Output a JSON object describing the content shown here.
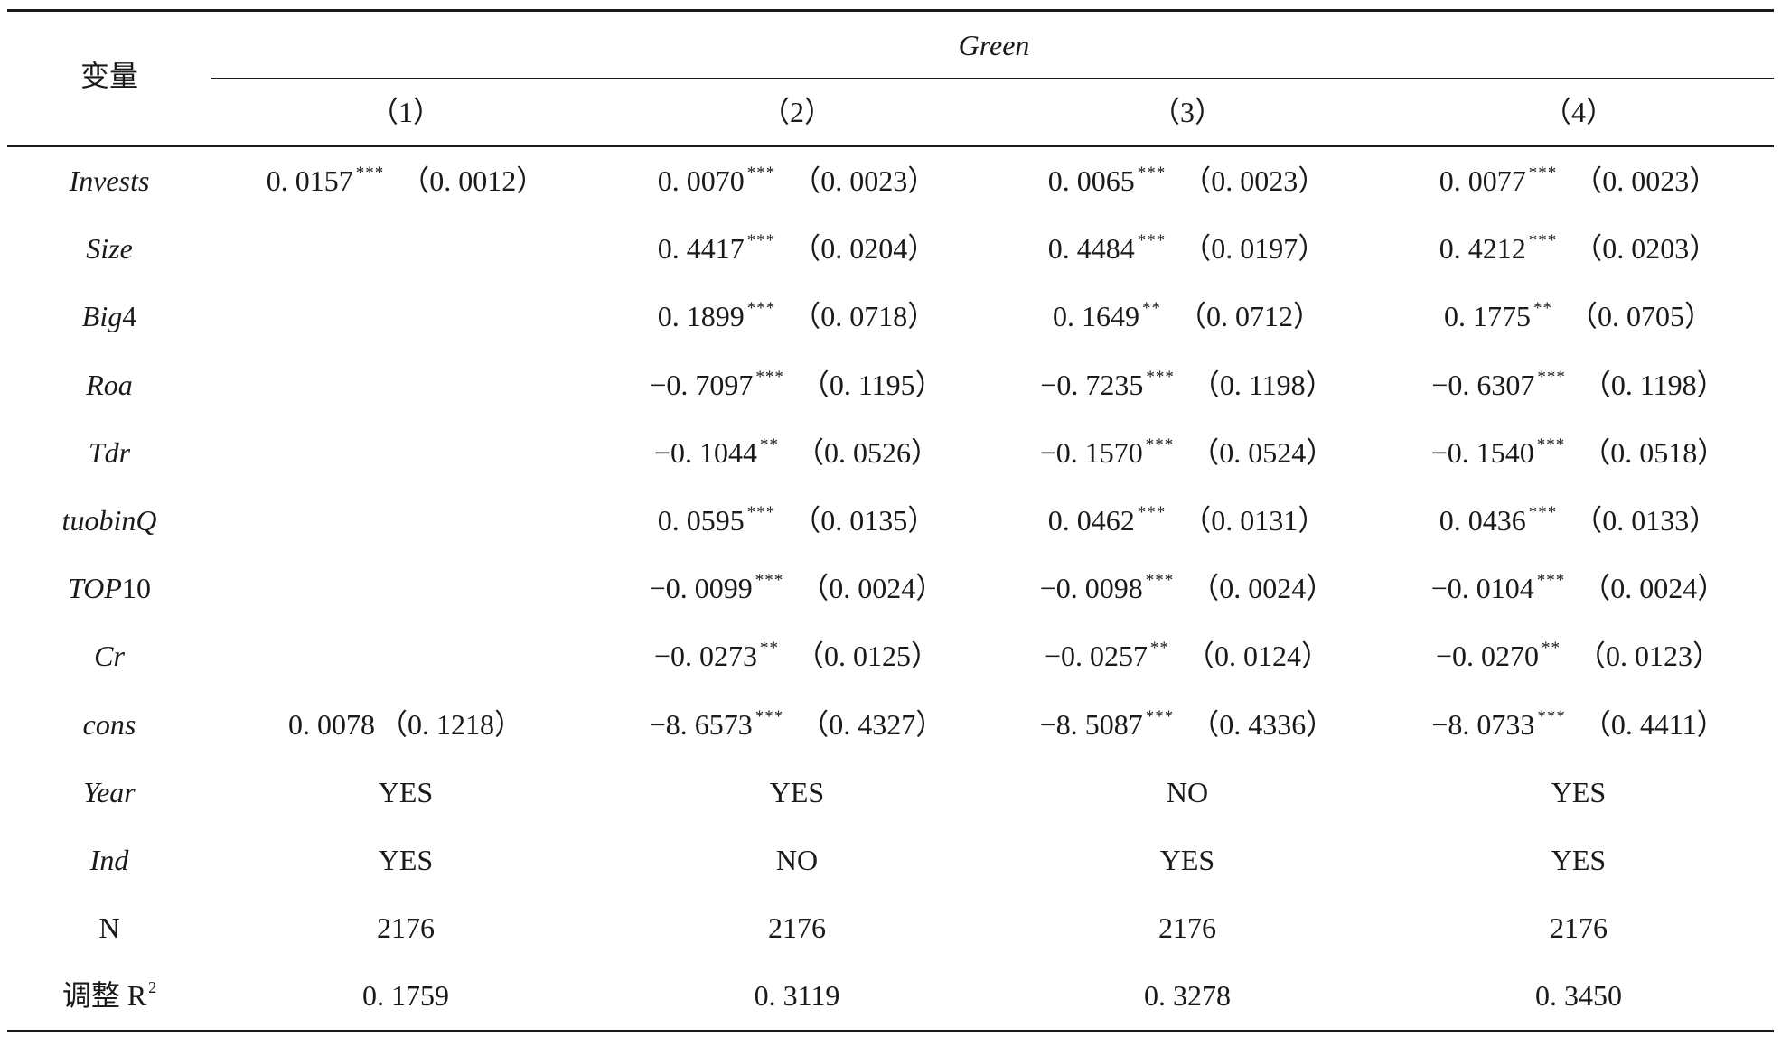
{
  "table": {
    "variable_header": "变量",
    "group_header": "Green",
    "columns": [
      "（1）",
      "（2）",
      "（3）",
      "（4）"
    ],
    "rows": [
      {
        "name": "Invests",
        "cells": [
          {
            "coef": "0. 0157",
            "stars": "***",
            "se": "（0. 0012）"
          },
          {
            "coef": "0. 0070",
            "stars": "***",
            "se": "（0. 0023）"
          },
          {
            "coef": "0. 0065",
            "stars": "***",
            "se": "（0. 0023）"
          },
          {
            "coef": "0. 0077",
            "stars": "***",
            "se": "（0. 0023）"
          }
        ]
      },
      {
        "name": "Size",
        "cells": [
          {
            "coef": "",
            "stars": "",
            "se": ""
          },
          {
            "coef": "0. 4417",
            "stars": "***",
            "se": "（0. 0204）"
          },
          {
            "coef": "0. 4484",
            "stars": "***",
            "se": "（0. 0197）"
          },
          {
            "coef": "0. 4212",
            "stars": "***",
            "se": "（0. 0203）"
          }
        ]
      },
      {
        "name": "Big4",
        "cells": [
          {
            "coef": "",
            "stars": "",
            "se": ""
          },
          {
            "coef": "0. 1899",
            "stars": "***",
            "se": "（0. 0718）"
          },
          {
            "coef": "0. 1649",
            "stars": "**",
            "se": "（0. 0712）"
          },
          {
            "coef": "0. 1775",
            "stars": "**",
            "se": "（0. 0705）"
          }
        ]
      },
      {
        "name": "Roa",
        "cells": [
          {
            "coef": "",
            "stars": "",
            "se": ""
          },
          {
            "coef": "−0. 7097",
            "stars": "***",
            "se": "（0. 1195）"
          },
          {
            "coef": "−0. 7235",
            "stars": "***",
            "se": "（0. 1198）"
          },
          {
            "coef": "−0. 6307",
            "stars": "***",
            "se": "（0. 1198）"
          }
        ]
      },
      {
        "name": "Tdr",
        "cells": [
          {
            "coef": "",
            "stars": "",
            "se": ""
          },
          {
            "coef": "−0. 1044",
            "stars": "**",
            "se": "（0. 0526）"
          },
          {
            "coef": "−0. 1570",
            "stars": "***",
            "se": "（0. 0524）"
          },
          {
            "coef": "−0. 1540",
            "stars": "***",
            "se": "（0. 0518）"
          }
        ]
      },
      {
        "name": "tuobinQ",
        "cells": [
          {
            "coef": "",
            "stars": "",
            "se": ""
          },
          {
            "coef": "0. 0595",
            "stars": "***",
            "se": "（0. 0135）"
          },
          {
            "coef": "0. 0462",
            "stars": "***",
            "se": "（0. 0131）"
          },
          {
            "coef": "0. 0436",
            "stars": "***",
            "se": "（0. 0133）"
          }
        ]
      },
      {
        "name": "TOP10",
        "cells": [
          {
            "coef": "",
            "stars": "",
            "se": ""
          },
          {
            "coef": "−0. 0099",
            "stars": "***",
            "se": "（0. 0024）"
          },
          {
            "coef": "−0. 0098",
            "stars": "***",
            "se": "（0. 0024）"
          },
          {
            "coef": "−0. 0104",
            "stars": "***",
            "se": "（0. 0024）"
          }
        ]
      },
      {
        "name": "Cr",
        "cells": [
          {
            "coef": "",
            "stars": "",
            "se": ""
          },
          {
            "coef": "−0. 0273",
            "stars": "**",
            "se": "（0. 0125）"
          },
          {
            "coef": "−0. 0257",
            "stars": "**",
            "se": "（0. 0124）"
          },
          {
            "coef": "−0. 0270",
            "stars": "**",
            "se": "（0. 0123）"
          }
        ]
      },
      {
        "name": "cons",
        "cells": [
          {
            "coef": "0. 0078",
            "stars": "",
            "se": "（0. 1218）"
          },
          {
            "coef": "−8. 6573",
            "stars": "***",
            "se": "（0. 4327）"
          },
          {
            "coef": "−8. 5087",
            "stars": "***",
            "se": "（0. 4336）"
          },
          {
            "coef": "−8. 0733",
            "stars": "***",
            "se": "（0. 4411）"
          }
        ]
      },
      {
        "name": "Year",
        "cells": [
          {
            "coef": "YES",
            "stars": "",
            "se": ""
          },
          {
            "coef": "YES",
            "stars": "",
            "se": ""
          },
          {
            "coef": "NO",
            "stars": "",
            "se": ""
          },
          {
            "coef": "YES",
            "stars": "",
            "se": ""
          }
        ]
      },
      {
        "name": "Ind",
        "cells": [
          {
            "coef": "YES",
            "stars": "",
            "se": ""
          },
          {
            "coef": "NO",
            "stars": "",
            "se": ""
          },
          {
            "coef": "YES",
            "stars": "",
            "se": ""
          },
          {
            "coef": "YES",
            "stars": "",
            "se": ""
          }
        ]
      },
      {
        "name": "N",
        "cells": [
          {
            "coef": "2176",
            "stars": "",
            "se": ""
          },
          {
            "coef": "2176",
            "stars": "",
            "se": ""
          },
          {
            "coef": "2176",
            "stars": "",
            "se": ""
          },
          {
            "coef": "2176",
            "stars": "",
            "se": ""
          }
        ]
      },
      {
        "name": "调整 R",
        "name_sup": "2",
        "cells": [
          {
            "coef": "0. 1759",
            "stars": "",
            "se": ""
          },
          {
            "coef": "0. 3119",
            "stars": "",
            "se": ""
          },
          {
            "coef": "0. 3278",
            "stars": "",
            "se": ""
          },
          {
            "coef": "0. 3450",
            "stars": "",
            "se": ""
          }
        ]
      }
    ]
  }
}
